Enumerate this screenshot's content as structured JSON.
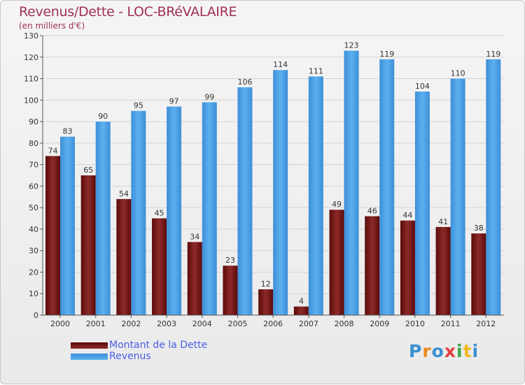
{
  "chart_data": {
    "type": "bar",
    "title": "Revenus/Dette - LOC-BRéVALAIRE",
    "subtitle": "(en milliers d'€)",
    "categories": [
      "2000",
      "2001",
      "2002",
      "2003",
      "2004",
      "2005",
      "2006",
      "2007",
      "2008",
      "2009",
      "2010",
      "2011",
      "2012"
    ],
    "series": [
      {
        "name": "Montant de la Dette",
        "values": [
          74,
          65,
          54,
          45,
          34,
          23,
          12,
          4,
          49,
          46,
          44,
          41,
          38
        ],
        "color": "#7a1a1a"
      },
      {
        "name": "Revenus",
        "values": [
          83,
          90,
          95,
          97,
          99,
          106,
          114,
          111,
          123,
          119,
          104,
          110,
          119
        ],
        "color": "#4aa0e0"
      }
    ],
    "ylim": [
      0,
      130
    ],
    "yticks": [
      0,
      10,
      20,
      30,
      40,
      50,
      60,
      70,
      80,
      90,
      100,
      110,
      120,
      130
    ],
    "grid": true,
    "legend": "bottom-left"
  },
  "logo": {
    "text": "Proxiti"
  }
}
